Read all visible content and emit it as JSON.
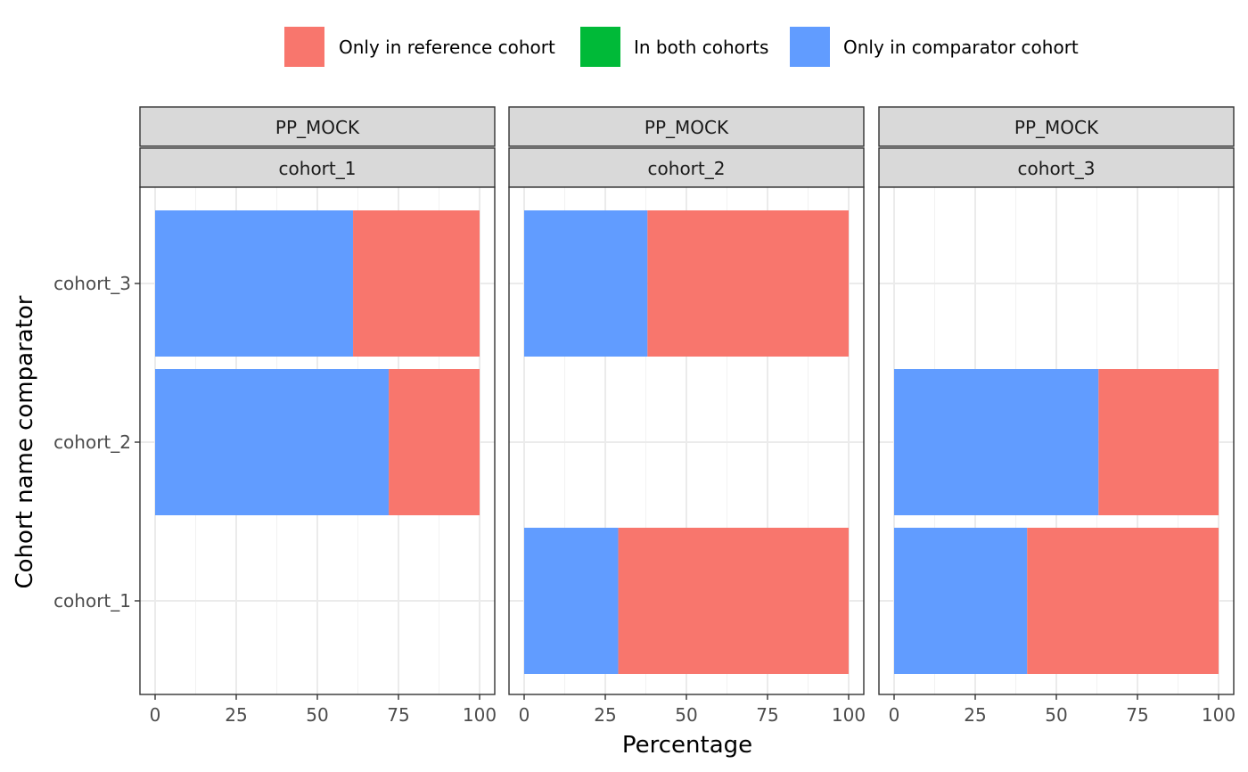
{
  "chart_data": {
    "type": "bar",
    "orientation": "horizontal",
    "stacked": true,
    "xlabel": "Percentage",
    "ylabel": "Cohort name comparator",
    "xlim": [
      0,
      100
    ],
    "x_ticks": [
      "0",
      "25",
      "50",
      "75",
      "100"
    ],
    "categories": [
      "cohort_1",
      "cohort_2",
      "cohort_3"
    ],
    "grid": true,
    "legend_position": "top",
    "legend": [
      {
        "name": "Only in reference cohort",
        "color": "#F8766D"
      },
      {
        "name": "In both cohorts",
        "color": "#00BA38"
      },
      {
        "name": "Only in comparator cohort",
        "color": "#619CFF"
      }
    ],
    "panels": [
      {
        "strip_top": "PP_MOCK",
        "strip_bottom": "cohort_1",
        "bars": [
          {
            "category": "cohort_3",
            "only_comparator": 61,
            "in_both": 0,
            "only_reference": 39
          },
          {
            "category": "cohort_2",
            "only_comparator": 72,
            "in_both": 0,
            "only_reference": 28
          }
        ]
      },
      {
        "strip_top": "PP_MOCK",
        "strip_bottom": "cohort_2",
        "bars": [
          {
            "category": "cohort_3",
            "only_comparator": 38,
            "in_both": 0,
            "only_reference": 62
          },
          {
            "category": "cohort_1",
            "only_comparator": 29,
            "in_both": 0,
            "only_reference": 71
          }
        ]
      },
      {
        "strip_top": "PP_MOCK",
        "strip_bottom": "cohort_3",
        "bars": [
          {
            "category": "cohort_2",
            "only_comparator": 63,
            "in_both": 0,
            "only_reference": 37
          },
          {
            "category": "cohort_1",
            "only_comparator": 41,
            "in_both": 0,
            "only_reference": 59
          }
        ]
      }
    ]
  }
}
